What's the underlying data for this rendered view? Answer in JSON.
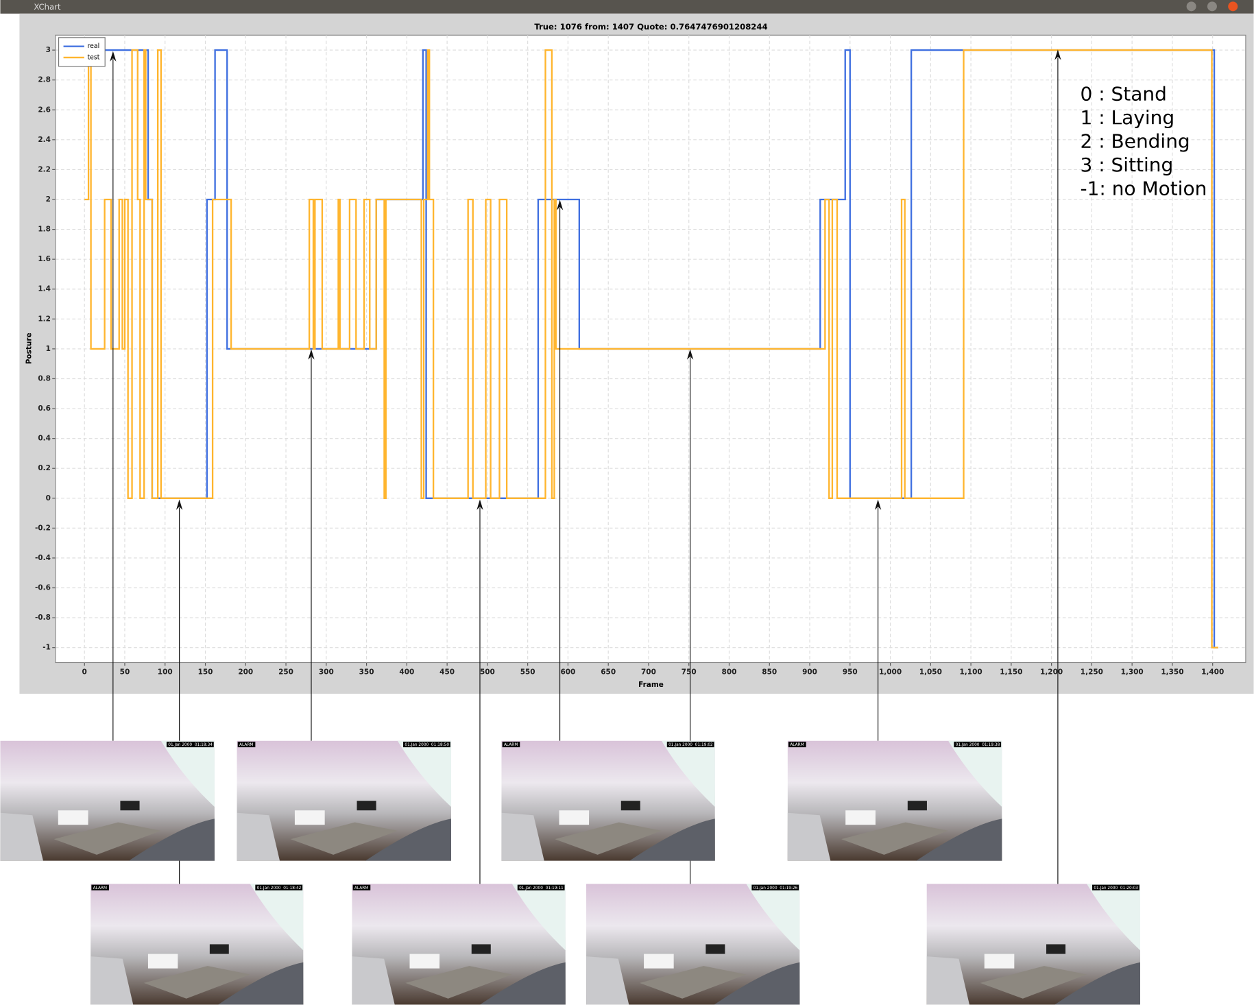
{
  "window_title": "XChart",
  "chart_data": {
    "type": "line",
    "title": "True: 1076 from: 1407 Quote: 0.7647476901208244",
    "xlabel": "Frame",
    "ylabel": "Posture",
    "series": [
      {
        "name": "real",
        "color": "#3f6fe0",
        "x": [
          0,
          79,
          79,
          84,
          84,
          152,
          152,
          162,
          162,
          177,
          177,
          362,
          362,
          420,
          420,
          424,
          424,
          563,
          563,
          614,
          614,
          913,
          913,
          944,
          944,
          950,
          950,
          1026,
          1026,
          1402,
          1402,
          1407
        ],
        "values": [
          3,
          3,
          2,
          2,
          0,
          0,
          2,
          2,
          3,
          3,
          1,
          1,
          2,
          2,
          3,
          3,
          0,
          0,
          2,
          2,
          1,
          1,
          2,
          2,
          3,
          3,
          0,
          0,
          3,
          3,
          -1,
          -1
        ]
      },
      {
        "name": "test",
        "color": "#ffb52e",
        "x": [
          0,
          5,
          5,
          8,
          8,
          25,
          25,
          33,
          33,
          43,
          43,
          47,
          47,
          50,
          50,
          54,
          54,
          59,
          59,
          66,
          66,
          69,
          69,
          74,
          74,
          76,
          76,
          84,
          84,
          91,
          91,
          95,
          95,
          159,
          159,
          182,
          182,
          279,
          279,
          284,
          284,
          286,
          286,
          295,
          295,
          315,
          315,
          317,
          317,
          329,
          329,
          337,
          337,
          347,
          347,
          354,
          354,
          362,
          362,
          372,
          372,
          374,
          374,
          418,
          418,
          421,
          421,
          426,
          426,
          428,
          428,
          433,
          433,
          476,
          476,
          482,
          482,
          498,
          498,
          504,
          504,
          515,
          515,
          524,
          524,
          572,
          572,
          580,
          580,
          583,
          583,
          585,
          585,
          919,
          919,
          924,
          924,
          928,
          928,
          934,
          934,
          1014,
          1014,
          1018,
          1018,
          1091,
          1091,
          1399,
          1399,
          1407
        ],
        "values": [
          2,
          2,
          3,
          3,
          1,
          1,
          2,
          2,
          1,
          1,
          2,
          2,
          1,
          1,
          2,
          2,
          0,
          0,
          3,
          3,
          2,
          2,
          0,
          0,
          3,
          3,
          2,
          2,
          0,
          0,
          3,
          3,
          0,
          0,
          2,
          2,
          1,
          1,
          2,
          2,
          1,
          1,
          2,
          2,
          1,
          1,
          2,
          2,
          1,
          1,
          2,
          2,
          1,
          1,
          2,
          2,
          1,
          1,
          2,
          2,
          0,
          0,
          2,
          2,
          0,
          0,
          2,
          2,
          3,
          3,
          2,
          2,
          0,
          0,
          2,
          2,
          0,
          0,
          2,
          2,
          0,
          0,
          2,
          2,
          0,
          0,
          3,
          3,
          0,
          0,
          2,
          2,
          1,
          1,
          2,
          2,
          0,
          0,
          2,
          2,
          0,
          0,
          2,
          2,
          0,
          0,
          3,
          3,
          -1,
          -1
        ]
      }
    ],
    "xlim": [
      -36,
      1441
    ],
    "ylim": [
      -1.1,
      3.1
    ],
    "xticks": [
      0,
      50,
      100,
      150,
      200,
      250,
      300,
      350,
      400,
      450,
      500,
      550,
      600,
      650,
      700,
      750,
      800,
      850,
      900,
      950,
      {
        "value": 1000,
        "label": "1,000"
      },
      {
        "value": 1050,
        "label": "1,050"
      },
      {
        "value": 1100,
        "label": "1,100"
      },
      {
        "value": 1150,
        "label": "1,150"
      },
      {
        "value": 1200,
        "label": "1,200"
      },
      {
        "value": 1250,
        "label": "1,250"
      },
      {
        "value": 1300,
        "label": "1,300"
      },
      {
        "value": 1350,
        "label": "1,350"
      },
      {
        "value": 1400,
        "label": "1,400"
      }
    ],
    "yticks": [
      -1,
      -0.8,
      -0.6,
      -0.4,
      -0.2,
      0,
      0.2,
      0.4,
      0.6,
      0.8,
      1,
      1.2,
      1.4,
      1.6,
      1.8,
      2,
      2.2,
      2.4,
      2.6,
      2.8,
      3
    ],
    "grid": true,
    "legend": "upper left"
  },
  "annotation": [
    "0 : Stand",
    "1 : Laying",
    "2 : Bending",
    "3 : Sitting",
    "-1: no Motion"
  ],
  "photos": [
    {
      "timestamp": "01.Jan 2000  01:18:34"
    },
    {
      "alarm": "ALARM",
      "timestamp": "01.Jan 2000  01:18:50"
    },
    {
      "alarm": "ALARM",
      "timestamp": "01.Jan 2000  01:19:02"
    },
    {
      "alarm": "ALARM",
      "timestamp": "01.Jan 2000  01:19:38"
    },
    {
      "alarm": "ALARM",
      "timestamp": "01.Jan 2000  01:18:42"
    },
    {
      "alarm": "ALARM",
      "timestamp": "01.Jan 2000  01:19:11"
    },
    {
      "timestamp": "01.Jan 2000  01:19:26"
    },
    {
      "timestamp": "01.Jan 2000  01:20:03"
    }
  ]
}
